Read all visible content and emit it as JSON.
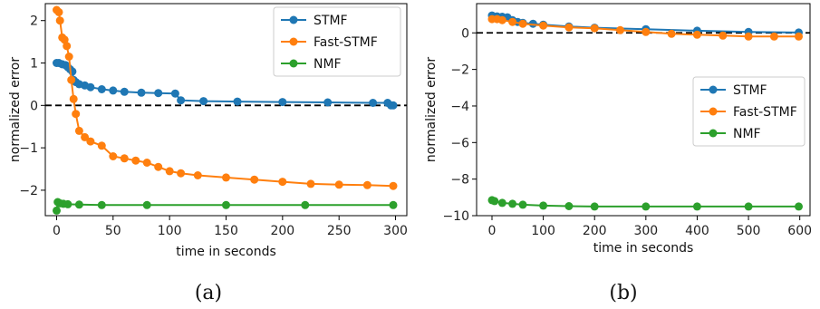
{
  "chart_data": [
    {
      "type": "line",
      "caption": "(a)",
      "xlabel": "time in seconds",
      "ylabel": "normalized error",
      "xlim": [
        -10,
        310
      ],
      "ylim": [
        -2.6,
        2.4
      ],
      "xticks": [
        0,
        50,
        100,
        150,
        200,
        250,
        300
      ],
      "yticks": [
        2,
        1,
        0,
        -1,
        -2
      ],
      "xtick_labels": [
        "0",
        "50",
        "100",
        "150",
        "200",
        "250",
        "300"
      ],
      "ytick_labels": [
        "2",
        "1",
        "0",
        "−1",
        "−2"
      ],
      "reference_line": {
        "y": 0,
        "style": "dashed",
        "color": "#000000"
      },
      "legend_position": "top-right",
      "series": [
        {
          "name": "STMF",
          "color": "#1f77b4",
          "x": [
            0,
            2,
            5,
            8,
            10,
            12,
            14,
            15,
            17,
            20,
            25,
            30,
            40,
            50,
            60,
            75,
            90,
            105,
            110,
            130,
            160,
            200,
            240,
            280,
            293,
            296,
            298
          ],
          "y": [
            1.0,
            1.0,
            0.97,
            0.95,
            0.9,
            0.85,
            0.8,
            0.6,
            0.55,
            0.5,
            0.47,
            0.43,
            0.38,
            0.35,
            0.32,
            0.3,
            0.29,
            0.28,
            0.12,
            0.1,
            0.09,
            0.08,
            0.07,
            0.06,
            0.06,
            0.0,
            0.0
          ]
        },
        {
          "name": "Fast-STMF",
          "color": "#ff7f0e",
          "x": [
            0,
            2,
            3,
            5,
            7,
            9,
            11,
            13,
            15,
            17,
            20,
            25,
            30,
            40,
            50,
            60,
            70,
            80,
            90,
            100,
            110,
            125,
            150,
            175,
            200,
            225,
            250,
            275,
            298
          ],
          "y": [
            2.25,
            2.2,
            2.0,
            1.6,
            1.55,
            1.4,
            1.15,
            0.6,
            0.15,
            -0.2,
            -0.6,
            -0.75,
            -0.85,
            -0.95,
            -1.2,
            -1.25,
            -1.3,
            -1.35,
            -1.45,
            -1.55,
            -1.6,
            -1.65,
            -1.7,
            -1.75,
            -1.8,
            -1.85,
            -1.87,
            -1.88,
            -1.9
          ]
        },
        {
          "name": "NMF",
          "color": "#2ca02c",
          "x": [
            0,
            1,
            3,
            6,
            10,
            20,
            40,
            80,
            150,
            220,
            298
          ],
          "y": [
            -2.48,
            -2.28,
            -2.31,
            -2.32,
            -2.33,
            -2.34,
            -2.35,
            -2.35,
            -2.35,
            -2.35,
            -2.35
          ]
        }
      ]
    },
    {
      "type": "line",
      "caption": "(b)",
      "xlabel": "time in seconds",
      "ylabel": "normalized error",
      "xlim": [
        -30,
        620
      ],
      "ylim": [
        -10.0,
        1.6
      ],
      "xticks": [
        0,
        100,
        200,
        300,
        400,
        500,
        600
      ],
      "yticks": [
        0,
        -2,
        -4,
        -6,
        -8,
        -10
      ],
      "xtick_labels": [
        "0",
        "100",
        "200",
        "300",
        "400",
        "500",
        "600"
      ],
      "ytick_labels": [
        "0",
        "−2",
        "−4",
        "−6",
        "−8",
        "−10"
      ],
      "reference_line": {
        "y": 0,
        "style": "dashed",
        "color": "#000000"
      },
      "legend_position": "center-right",
      "series": [
        {
          "name": "STMF",
          "color": "#1f77b4",
          "x": [
            0,
            10,
            20,
            30,
            40,
            50,
            60,
            80,
            100,
            150,
            200,
            300,
            400,
            500,
            598
          ],
          "y": [
            0.95,
            0.9,
            0.88,
            0.85,
            0.7,
            0.6,
            0.55,
            0.5,
            0.45,
            0.35,
            0.28,
            0.2,
            0.12,
            0.05,
            0.02
          ]
        },
        {
          "name": "Fast-STMF",
          "color": "#ff7f0e",
          "x": [
            0,
            10,
            20,
            40,
            60,
            100,
            150,
            200,
            250,
            300,
            350,
            400,
            450,
            500,
            550,
            598
          ],
          "y": [
            0.75,
            0.75,
            0.7,
            0.6,
            0.5,
            0.4,
            0.3,
            0.25,
            0.15,
            0.05,
            -0.05,
            -0.1,
            -0.15,
            -0.2,
            -0.2,
            -0.2
          ]
        },
        {
          "name": "NMF",
          "color": "#2ca02c",
          "x": [
            0,
            5,
            20,
            40,
            60,
            100,
            150,
            200,
            300,
            400,
            500,
            598
          ],
          "y": [
            -9.15,
            -9.2,
            -9.3,
            -9.35,
            -9.4,
            -9.45,
            -9.48,
            -9.5,
            -9.5,
            -9.5,
            -9.5,
            -9.5
          ]
        }
      ]
    }
  ]
}
